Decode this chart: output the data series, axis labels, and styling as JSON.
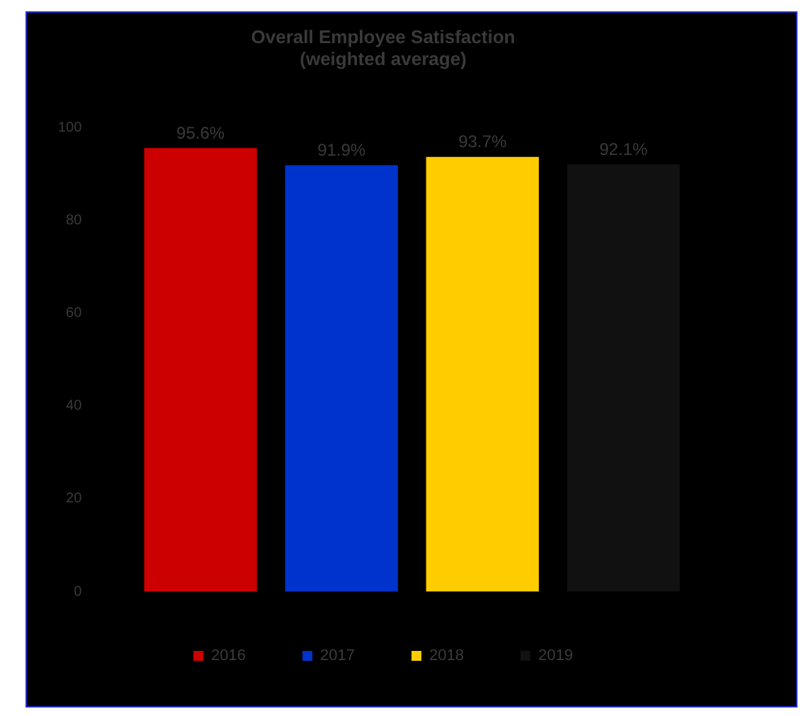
{
  "chart_data": {
    "type": "bar",
    "title": [
      "Overall Employee Satisfaction",
      "(weighted average)"
    ],
    "categories": [
      null
    ],
    "series": [
      {
        "name": "2016",
        "color": "#cc0000",
        "values": [
          95.6
        ],
        "value_labels": [
          "95.6%"
        ]
      },
      {
        "name": "2017",
        "color": "#0033cc",
        "values": [
          91.9
        ],
        "value_labels": [
          "91.9%"
        ]
      },
      {
        "name": "2018",
        "color": "#ffcc00",
        "values": [
          93.7
        ],
        "value_labels": [
          "93.7%"
        ]
      },
      {
        "name": "2019",
        "color": "#111111",
        "values": [
          92.1
        ],
        "value_labels": [
          "92.1%"
        ]
      }
    ],
    "ylim": [
      0,
      100
    ],
    "yticks": [
      0,
      20,
      40,
      60,
      80,
      100
    ],
    "grid": false,
    "legend": "bottom",
    "tick_labels": "y"
  }
}
